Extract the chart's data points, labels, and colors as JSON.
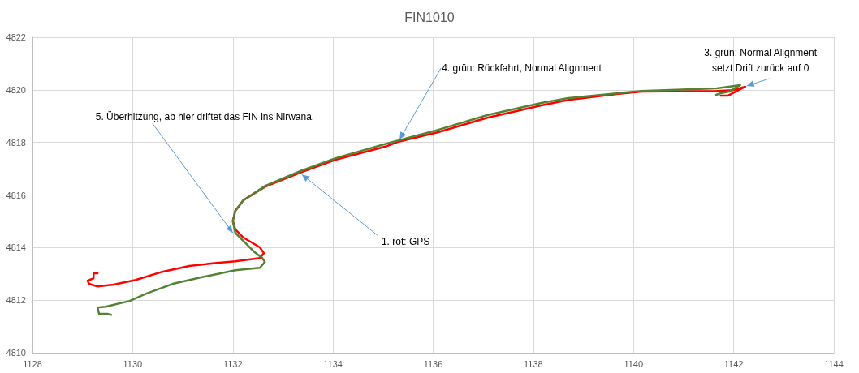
{
  "chart_data": {
    "type": "line",
    "title": "FIN1010",
    "xlim": [
      1128,
      1144
    ],
    "xticks": [
      1128,
      1130,
      1132,
      1134,
      1136,
      1138,
      1140,
      1142,
      1144
    ],
    "ylim": [
      4810,
      4822
    ],
    "yticks": [
      4810,
      4812,
      4814,
      4816,
      4818,
      4820,
      4822
    ],
    "grid": true,
    "series": [
      {
        "color": "#ff0000",
        "x": [
          1129.3,
          1129.22,
          1129.22,
          1129.1,
          1129.13,
          1129.3,
          1129.62,
          1130.06,
          1130.59,
          1131.13,
          1131.68,
          1132.05,
          1132.54,
          1132.62,
          1132.54,
          1132.21,
          1132.05,
          1132.0,
          1132.05,
          1132.21,
          1132.65,
          1133.35,
          1134.05,
          1135.08,
          1135.29,
          1136.1,
          1137.08,
          1138.16,
          1138.7,
          1139.67,
          1140.16,
          1141.66,
          1141.99,
          1142.23,
          1141.89,
          1141.74
        ],
        "values": [
          4813.02,
          4813.02,
          4812.83,
          4812.74,
          4812.62,
          4812.52,
          4812.59,
          4812.77,
          4813.08,
          4813.3,
          4813.42,
          4813.48,
          4813.6,
          4813.79,
          4814.01,
          4814.38,
          4814.69,
          4815.02,
          4815.4,
          4815.8,
          4816.32,
          4816.85,
          4817.34,
          4817.86,
          4818.02,
          4818.39,
          4818.94,
          4819.41,
          4819.62,
          4819.84,
          4819.93,
          4819.96,
          4819.99,
          4820.12,
          4819.78,
          4819.78
        ]
      },
      {
        "color": "#548235",
        "x": [
          1129.57,
          1129.49,
          1129.33,
          1129.3,
          1129.46,
          1129.94,
          1130.27,
          1130.8,
          1131.35,
          1132.05,
          1132.54,
          1132.64,
          1132.59,
          1132.42,
          1132.21,
          1132.05,
          1132.0,
          1132.05,
          1132.21,
          1132.65,
          1133.35,
          1134.05,
          1135.08,
          1136.1,
          1137.08,
          1138.16,
          1138.7,
          1140.16,
          1141.66,
          1142.02,
          1142.13,
          1141.91,
          1141.74,
          1141.65
        ],
        "values": [
          4811.44,
          4811.48,
          4811.48,
          4811.72,
          4811.75,
          4811.97,
          4812.25,
          4812.62,
          4812.86,
          4813.14,
          4813.23,
          4813.45,
          4813.6,
          4813.85,
          4814.25,
          4814.56,
          4815.0,
          4815.4,
          4815.8,
          4816.35,
          4816.91,
          4817.4,
          4817.96,
          4818.48,
          4819.04,
          4819.5,
          4819.69,
          4819.96,
          4820.06,
          4820.15,
          4820.18,
          4819.93,
          4819.87,
          4819.81
        ]
      }
    ],
    "annotations": [
      {
        "text": "1. rot: GPS",
        "x": 1133.38,
        "y": 4816.78
      },
      {
        "text": "3. grün: Normal Alignment\nsetzt Drift zurück auf 0",
        "x": 1142.26,
        "y": 4820.15
      },
      {
        "text": "4. grün: Rückfahrt, Normal Alignment",
        "x": 1135.33,
        "y": 4818.11
      },
      {
        "text": "5. Überhitzung, ab hier driftet das FIN ins Nirwana.",
        "x": 1132.0,
        "y": 4814.56
      }
    ]
  }
}
